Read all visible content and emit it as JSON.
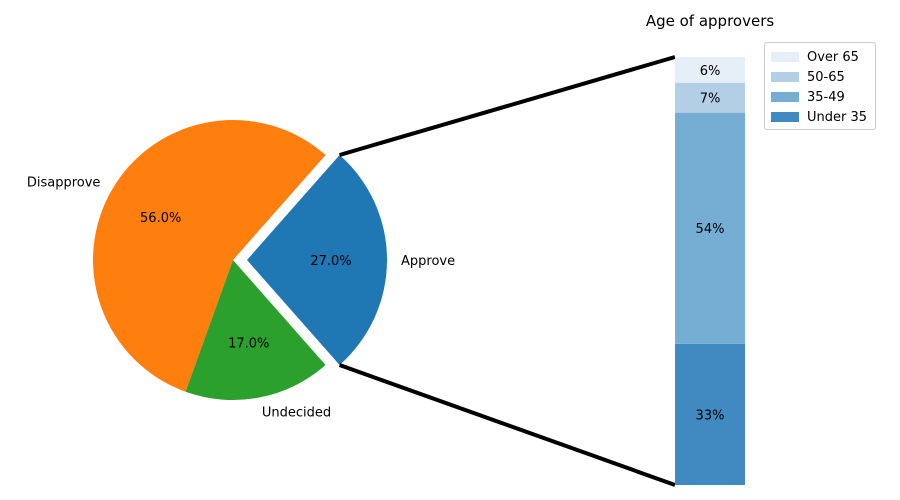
{
  "chart_data": [
    {
      "type": "pie",
      "title": "",
      "labels": [
        "Approve",
        "Disapprove",
        "Undecided"
      ],
      "values": [
        27.0,
        56.0,
        17.0
      ],
      "value_labels": [
        "27.0%",
        "56.0%",
        "17.0%"
      ],
      "colors": [
        "#1f77b4",
        "#ff7f0e",
        "#2ca02c"
      ],
      "exploded": "Approve"
    },
    {
      "type": "bar",
      "title": "Age of approvers",
      "stacked": true,
      "categories": [
        "Under 35",
        "35-49",
        "50-65",
        "Over 65"
      ],
      "values": [
        0.33,
        0.54,
        0.07,
        0.06
      ],
      "value_labels": [
        "33%",
        "54%",
        "7%",
        "6%"
      ],
      "colors": [
        "#4189c1",
        "#76aed3",
        "#b2cfe6",
        "#e6eff8"
      ],
      "legend_order": [
        "Over 65",
        "50-65",
        "35-49",
        "Under 35"
      ],
      "legend_placement": "top-right"
    }
  ]
}
